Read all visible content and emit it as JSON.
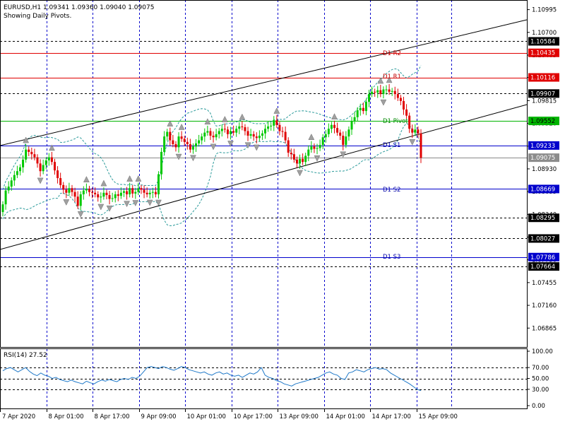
{
  "header": {
    "symbol_line": "EURUSD,H1  1.09341 1.09360 1.09040 1.09075",
    "subtitle": "Showing Daily Pivots."
  },
  "price_axis": {
    "ticks": [
      "1.10995",
      "1.10700",
      "1.10405",
      "1.10116",
      "1.09815",
      "1.09520",
      "1.09225",
      "1.08930",
      "1.08635",
      "1.08340",
      "1.08045",
      "1.07750",
      "1.07455",
      "1.07160",
      "1.06865"
    ]
  },
  "highlighted_prices": [
    {
      "text": "1.10584",
      "style": "black"
    },
    {
      "text": "1.10435",
      "style": "red"
    },
    {
      "text": "1.10116",
      "style": "red"
    },
    {
      "text": "1.09907",
      "style": "black"
    },
    {
      "text": "1.09552",
      "style": "green"
    },
    {
      "text": "1.09233",
      "style": "blue"
    },
    {
      "text": "1.09075",
      "style": "gray"
    },
    {
      "text": "1.08669",
      "style": "blue"
    },
    {
      "text": "1.08295",
      "style": "black"
    },
    {
      "text": "1.08027",
      "style": "black"
    },
    {
      "text": "1.07786",
      "style": "blue"
    },
    {
      "text": "1.07664",
      "style": "black"
    }
  ],
  "pivot_labels": {
    "r2": "D1 R2",
    "r1": "D1 R1",
    "pivot": "D1 Pivot",
    "s1": "D1 S1",
    "s2": "D1 S2",
    "s3": "D1 S3"
  },
  "rsi": {
    "label": "RSI(14) 27.52",
    "ticks": [
      "100.00",
      "70.00",
      "50.00",
      "30.00",
      "0.00"
    ]
  },
  "time_axis": {
    "labels": [
      "7 Apr 2020",
      "8 Apr 01:00",
      "8 Apr 17:00",
      "9 Apr 09:00",
      "10 Apr 01:00",
      "10 Apr 17:00",
      "13 Apr 09:00",
      "14 Apr 01:00",
      "14 Apr 17:00",
      "15 Apr 09:00"
    ]
  },
  "colors": {
    "bull": "#00c800",
    "bear": "#e00000",
    "pivot_resist": "#e00000",
    "pivot": "#00b400",
    "pivot_support": "#0000cc",
    "grid": "#0000cc",
    "rsi_line": "#1e78c8",
    "bands": "#2a9a9a"
  },
  "chart_data": [
    {
      "type": "candlestick",
      "title": "EURUSD,H1",
      "ylim": [
        1.0662,
        1.1112
      ],
      "pivots": {
        "R2": 1.10435,
        "R1": 1.10116,
        "Pivot": 1.09552,
        "S1": 1.09233,
        "S2": 1.08669,
        "S3": 1.07786
      },
      "horizontal_levels": [
        1.10584,
        1.09907,
        1.08295,
        1.08027,
        1.07664
      ],
      "current_price": 1.09075,
      "close_series": [
        1.0847,
        1.0865,
        1.087,
        1.0878,
        1.0885,
        1.089,
        1.0895,
        1.0905,
        1.0918,
        1.0915,
        1.0912,
        1.0908,
        1.09,
        1.089,
        1.0898,
        1.0904,
        1.0908,
        1.0902,
        1.0891,
        1.0881,
        1.0872,
        1.0866,
        1.0862,
        1.0868,
        1.0863,
        1.0857,
        1.0845,
        1.086,
        1.0865,
        1.0867,
        1.0863,
        1.0862,
        1.086,
        1.0856,
        1.0857,
        1.0862,
        1.0859,
        1.0854,
        1.0855,
        1.086,
        1.0858,
        1.0862,
        1.0864,
        1.086,
        1.0868,
        1.0861,
        1.0863,
        1.0868,
        1.0866,
        1.0862,
        1.086,
        1.0862,
        1.0863,
        1.086,
        1.0886,
        1.0915,
        1.0935,
        1.0941,
        1.093,
        1.0925,
        1.0921,
        1.0935,
        1.0932,
        1.0928,
        1.0925,
        1.0918,
        1.0922,
        1.0926,
        1.093,
        1.0935,
        1.094,
        1.0942,
        1.0936,
        1.0934,
        1.0938,
        1.0942,
        1.0945,
        1.0944,
        1.0938,
        1.0942,
        1.094,
        1.0945,
        1.0948,
        1.0947,
        1.0942,
        1.0936,
        1.0938,
        1.0935,
        1.0933,
        1.0936,
        1.0939,
        1.0945,
        1.0948,
        1.0949,
        1.0956,
        1.095,
        1.0942,
        1.0941,
        1.093,
        1.0914,
        1.0912,
        1.0905,
        1.09,
        1.0906,
        1.0902,
        1.091,
        1.0918,
        1.0922,
        1.0919,
        1.092,
        1.0924,
        1.0934,
        1.0938,
        1.0945,
        1.095,
        1.0946,
        1.094,
        1.0936,
        1.0924,
        1.0935,
        1.0944,
        1.0955,
        1.096,
        1.0969,
        1.0972,
        1.0968,
        1.098,
        1.099,
        1.0993,
        1.0992,
        1.0995,
        1.099,
        1.0996,
        1.0996,
        1.0993,
        1.0994,
        1.099,
        1.0985,
        1.0981,
        1.097,
        1.0962,
        1.0945,
        1.094,
        1.0944,
        1.0939,
        1.09075
      ]
    },
    {
      "type": "line",
      "title": "RSI(14) 27.52",
      "ylim": [
        0,
        100
      ],
      "levels": [
        70,
        50,
        30
      ],
      "series": [
        {
          "values": [
            64,
            68,
            70,
            66,
            62,
            66,
            70,
            63,
            58,
            55,
            60,
            56,
            54,
            50,
            52,
            48,
            46,
            44,
            47,
            44,
            42,
            40,
            45,
            42,
            40,
            44,
            47,
            45,
            48,
            46,
            44,
            48,
            50,
            48,
            52,
            50,
            54,
            62,
            70,
            72,
            70,
            68,
            72,
            70,
            67,
            65,
            68,
            72,
            70,
            66,
            64,
            62,
            60,
            62,
            58,
            56,
            60,
            62,
            58,
            60,
            56,
            54,
            56,
            52,
            56,
            60,
            58,
            62,
            70,
            56,
            52,
            50,
            46,
            44,
            40,
            38,
            36,
            40,
            42,
            44,
            46,
            48,
            50,
            52,
            56,
            60,
            62,
            58,
            56,
            50,
            48,
            60,
            62,
            66,
            64,
            62,
            66,
            68,
            70,
            67,
            68,
            66,
            60,
            56,
            52,
            48,
            44,
            40,
            35,
            30,
            27.52
          ]
        }
      ]
    }
  ]
}
